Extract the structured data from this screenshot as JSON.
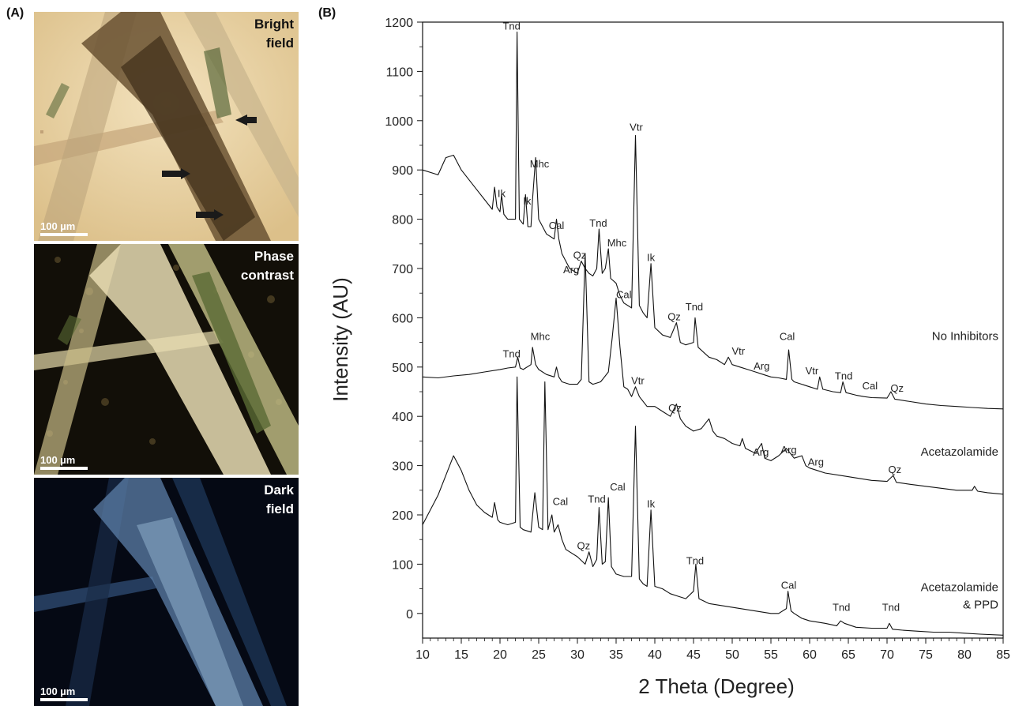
{
  "figure": {
    "panel_a_letter": "(A)",
    "panel_b_letter": "(B)"
  },
  "panel_a": [
    {
      "label_line1": "Bright",
      "label_line2": "field",
      "scale": "100 µm"
    },
    {
      "label_line1": "Phase",
      "label_line2": "contrast",
      "scale": "100 µm"
    },
    {
      "label_line1": "Dark",
      "label_line2": "field",
      "scale": "100 µm"
    }
  ],
  "chart_data": {
    "type": "line",
    "xlabel": "2 Theta (Degree)",
    "ylabel": "Intensity (AU)",
    "xlim": [
      10,
      85
    ],
    "ylim": [
      -50,
      1200
    ],
    "xticks": [
      10,
      15,
      20,
      25,
      30,
      35,
      40,
      45,
      50,
      55,
      60,
      65,
      70,
      75,
      80,
      85
    ],
    "yticks": [
      0,
      100,
      200,
      300,
      400,
      500,
      600,
      700,
      800,
      900,
      1000,
      1100,
      1200
    ],
    "grid": false,
    "series": [
      {
        "name": "No Inhibitors",
        "color": "#111111",
        "points": [
          [
            10,
            900
          ],
          [
            12,
            890
          ],
          [
            13,
            925
          ],
          [
            14,
            930
          ],
          [
            15,
            900
          ],
          [
            16,
            880
          ],
          [
            17,
            860
          ],
          [
            18,
            840
          ],
          [
            19,
            820
          ],
          [
            19.3,
            865
          ],
          [
            19.6,
            825
          ],
          [
            20,
            815
          ],
          [
            20.2,
            850
          ],
          [
            20.5,
            810
          ],
          [
            21,
            800
          ],
          [
            22,
            800
          ],
          [
            22.2,
            1180
          ],
          [
            22.5,
            800
          ],
          [
            23,
            790
          ],
          [
            23.3,
            850
          ],
          [
            23.6,
            785
          ],
          [
            24,
            785
          ],
          [
            24.2,
            840
          ],
          [
            24.6,
            925
          ],
          [
            25,
            800
          ],
          [
            26,
            770
          ],
          [
            27,
            760
          ],
          [
            27.3,
            800
          ],
          [
            27.6,
            760
          ],
          [
            28,
            730
          ],
          [
            29,
            700
          ],
          [
            30,
            690
          ],
          [
            30.5,
            715
          ],
          [
            31,
            700
          ],
          [
            31.5,
            690
          ],
          [
            32,
            685
          ],
          [
            32.5,
            700
          ],
          [
            32.8,
            780
          ],
          [
            33.2,
            690
          ],
          [
            33.6,
            700
          ],
          [
            34,
            740
          ],
          [
            34.3,
            680
          ],
          [
            35,
            670
          ],
          [
            35.5,
            645
          ],
          [
            36,
            630
          ],
          [
            37,
            620
          ],
          [
            37.5,
            970
          ],
          [
            38,
            625
          ],
          [
            38.5,
            610
          ],
          [
            39,
            600
          ],
          [
            39.5,
            710
          ],
          [
            40,
            580
          ],
          [
            41,
            565
          ],
          [
            42,
            560
          ],
          [
            42.8,
            590
          ],
          [
            43.3,
            550
          ],
          [
            44,
            545
          ],
          [
            45,
            550
          ],
          [
            45.2,
            600
          ],
          [
            45.6,
            540
          ],
          [
            47,
            520
          ],
          [
            48,
            515
          ],
          [
            49,
            505
          ],
          [
            49.5,
            520
          ],
          [
            50,
            505
          ],
          [
            51,
            500
          ],
          [
            52,
            495
          ],
          [
            53,
            490
          ],
          [
            54,
            485
          ],
          [
            55,
            480
          ],
          [
            56,
            478
          ],
          [
            57,
            475
          ],
          [
            57.3,
            535
          ],
          [
            57.7,
            475
          ],
          [
            58,
            470
          ],
          [
            59,
            465
          ],
          [
            60,
            460
          ],
          [
            61,
            455
          ],
          [
            61.3,
            480
          ],
          [
            61.7,
            455
          ],
          [
            63,
            450
          ],
          [
            64,
            448
          ],
          [
            64.3,
            470
          ],
          [
            64.7,
            448
          ],
          [
            66,
            443
          ],
          [
            67,
            440
          ],
          [
            68,
            438
          ],
          [
            70,
            437
          ],
          [
            70.5,
            450
          ],
          [
            71,
            435
          ],
          [
            73,
            430
          ],
          [
            75,
            425
          ],
          [
            77,
            422
          ],
          [
            79,
            420
          ],
          [
            81,
            418
          ],
          [
            83,
            416
          ],
          [
            85,
            415
          ]
        ]
      },
      {
        "name": "Acetazolamide",
        "color": "#111111",
        "points": [
          [
            10,
            480
          ],
          [
            12,
            478
          ],
          [
            14,
            482
          ],
          [
            16,
            485
          ],
          [
            18,
            490
          ],
          [
            20,
            495
          ],
          [
            21,
            498
          ],
          [
            22,
            500
          ],
          [
            22.3,
            520
          ],
          [
            22.6,
            498
          ],
          [
            23,
            495
          ],
          [
            24,
            505
          ],
          [
            24.2,
            540
          ],
          [
            24.6,
            505
          ],
          [
            25,
            495
          ],
          [
            26,
            485
          ],
          [
            27,
            480
          ],
          [
            27.3,
            500
          ],
          [
            27.6,
            480
          ],
          [
            28,
            470
          ],
          [
            29,
            465
          ],
          [
            30,
            465
          ],
          [
            30.5,
            475
          ],
          [
            31,
            730
          ],
          [
            31.5,
            470
          ],
          [
            32,
            465
          ],
          [
            33,
            470
          ],
          [
            34,
            490
          ],
          [
            34.5,
            560
          ],
          [
            35,
            640
          ],
          [
            35.5,
            540
          ],
          [
            36,
            460
          ],
          [
            36.5,
            455
          ],
          [
            37,
            440
          ],
          [
            37.5,
            460
          ],
          [
            38,
            440
          ],
          [
            39,
            420
          ],
          [
            40,
            420
          ],
          [
            41,
            410
          ],
          [
            42,
            400
          ],
          [
            42.8,
            425
          ],
          [
            43.3,
            395
          ],
          [
            44,
            380
          ],
          [
            45,
            370
          ],
          [
            46,
            375
          ],
          [
            47,
            395
          ],
          [
            47.5,
            370
          ],
          [
            48,
            360
          ],
          [
            49,
            355
          ],
          [
            50,
            345
          ],
          [
            51,
            340
          ],
          [
            51.3,
            355
          ],
          [
            51.7,
            335
          ],
          [
            53,
            325
          ],
          [
            53.8,
            345
          ],
          [
            54.2,
            315
          ],
          [
            55,
            310
          ],
          [
            56,
            320
          ],
          [
            57,
            335
          ],
          [
            58,
            315
          ],
          [
            59,
            320
          ],
          [
            59.5,
            300
          ],
          [
            60,
            295
          ],
          [
            61,
            290
          ],
          [
            62,
            285
          ],
          [
            64,
            280
          ],
          [
            66,
            275
          ],
          [
            68,
            270
          ],
          [
            70,
            268
          ],
          [
            70.8,
            280
          ],
          [
            71.2,
            266
          ],
          [
            73,
            262
          ],
          [
            75,
            258
          ],
          [
            77,
            254
          ],
          [
            79,
            250
          ],
          [
            81,
            250
          ],
          [
            81.3,
            258
          ],
          [
            81.7,
            248
          ],
          [
            83,
            245
          ],
          [
            85,
            242
          ]
        ]
      },
      {
        "name": "Acetazolamide & PPD",
        "color": "#111111",
        "points": [
          [
            10,
            180
          ],
          [
            11,
            210
          ],
          [
            12,
            240
          ],
          [
            13,
            280
          ],
          [
            14,
            320
          ],
          [
            15,
            290
          ],
          [
            16,
            250
          ],
          [
            17,
            220
          ],
          [
            18,
            205
          ],
          [
            19,
            195
          ],
          [
            19.3,
            225
          ],
          [
            19.7,
            190
          ],
          [
            20,
            185
          ],
          [
            21,
            180
          ],
          [
            22,
            185
          ],
          [
            22.2,
            480
          ],
          [
            22.6,
            175
          ],
          [
            23,
            170
          ],
          [
            24,
            165
          ],
          [
            24.5,
            245
          ],
          [
            25,
            175
          ],
          [
            25.5,
            170
          ],
          [
            25.8,
            470
          ],
          [
            26.2,
            170
          ],
          [
            26.7,
            200
          ],
          [
            27,
            165
          ],
          [
            27.5,
            180
          ],
          [
            28,
            150
          ],
          [
            28.5,
            130
          ],
          [
            29,
            125
          ],
          [
            30,
            115
          ],
          [
            31,
            100
          ],
          [
            31.5,
            125
          ],
          [
            32,
            95
          ],
          [
            32.5,
            110
          ],
          [
            32.8,
            215
          ],
          [
            33.2,
            100
          ],
          [
            33.6,
            105
          ],
          [
            34,
            235
          ],
          [
            34.4,
            95
          ],
          [
            35,
            80
          ],
          [
            36,
            75
          ],
          [
            37,
            75
          ],
          [
            37.5,
            380
          ],
          [
            38,
            70
          ],
          [
            38.5,
            60
          ],
          [
            39,
            55
          ],
          [
            39.5,
            210
          ],
          [
            40,
            55
          ],
          [
            41,
            50
          ],
          [
            42,
            40
          ],
          [
            43,
            35
          ],
          [
            44,
            30
          ],
          [
            45,
            45
          ],
          [
            45.3,
            100
          ],
          [
            45.7,
            30
          ],
          [
            47,
            20
          ],
          [
            49,
            15
          ],
          [
            51,
            10
          ],
          [
            53,
            5
          ],
          [
            55,
            0
          ],
          [
            56,
            0
          ],
          [
            57,
            10
          ],
          [
            57.2,
            45
          ],
          [
            57.6,
            5
          ],
          [
            58,
            0
          ],
          [
            59,
            -10
          ],
          [
            60,
            -15
          ],
          [
            62,
            -20
          ],
          [
            63.5,
            -25
          ],
          [
            64,
            -15
          ],
          [
            64.5,
            -20
          ],
          [
            66,
            -28
          ],
          [
            68,
            -30
          ],
          [
            70,
            -30
          ],
          [
            70.3,
            -20
          ],
          [
            70.7,
            -32
          ],
          [
            72,
            -34
          ],
          [
            74,
            -36
          ],
          [
            76,
            -38
          ],
          [
            78,
            -38
          ],
          [
            80,
            -40
          ],
          [
            82,
            -42
          ],
          [
            85,
            -44
          ]
        ]
      }
    ],
    "series_labels": [
      {
        "text": "No Inhibitors",
        "x": 85,
        "y": 555
      },
      {
        "text": "Acetazolamide",
        "x": 85,
        "y": 320
      },
      {
        "text": "Acetazolamide",
        "x": 85,
        "y": 45
      },
      {
        "text": "& PPD",
        "x": 85,
        "y": 10
      }
    ],
    "annotations": [
      {
        "text": "Tnd",
        "x": 21.5,
        "y": 1185
      },
      {
        "text": "Ik",
        "x": 20.2,
        "y": 845
      },
      {
        "text": "Mhc",
        "x": 25.1,
        "y": 905
      },
      {
        "text": "Ik",
        "x": 23.5,
        "y": 830
      },
      {
        "text": "Cal",
        "x": 27.3,
        "y": 780
      },
      {
        "text": "Tnd",
        "x": 32.7,
        "y": 785
      },
      {
        "text": "Qz",
        "x": 30.3,
        "y": 720
      },
      {
        "text": "Mhc",
        "x": 35.1,
        "y": 745
      },
      {
        "text": "Arg",
        "x": 29.2,
        "y": 690
      },
      {
        "text": "Cal",
        "x": 36,
        "y": 640
      },
      {
        "text": "Vtr",
        "x": 37.6,
        "y": 980
      },
      {
        "text": "Ik",
        "x": 39.5,
        "y": 715
      },
      {
        "text": "Qz",
        "x": 42.5,
        "y": 595
      },
      {
        "text": "Tnd",
        "x": 45.1,
        "y": 615
      },
      {
        "text": "Vtr",
        "x": 50.8,
        "y": 525
      },
      {
        "text": "Arg",
        "x": 53.8,
        "y": 495
      },
      {
        "text": "Cal",
        "x": 57.1,
        "y": 555
      },
      {
        "text": "Vtr",
        "x": 60.3,
        "y": 485
      },
      {
        "text": "Tnd",
        "x": 64.4,
        "y": 475
      },
      {
        "text": "Cal",
        "x": 67.8,
        "y": 455
      },
      {
        "text": "Qz",
        "x": 71.3,
        "y": 450
      },
      {
        "text": "Tnd",
        "x": 21.5,
        "y": 520
      },
      {
        "text": "Mhc",
        "x": 25.2,
        "y": 555
      },
      {
        "text": "Vtr",
        "x": 37.8,
        "y": 465
      },
      {
        "text": "Qz",
        "x": 42.6,
        "y": 410
      },
      {
        "text": "Arg",
        "x": 53.7,
        "y": 320
      },
      {
        "text": "Arg",
        "x": 57.3,
        "y": 325
      },
      {
        "text": "Arg",
        "x": 60.8,
        "y": 300
      },
      {
        "text": "Qz",
        "x": 71,
        "y": 285
      },
      {
        "text": "Cal",
        "x": 27.8,
        "y": 220
      },
      {
        "text": "Tnd",
        "x": 32.5,
        "y": 225
      },
      {
        "text": "Cal",
        "x": 35.2,
        "y": 250
      },
      {
        "text": "Qz",
        "x": 30.8,
        "y": 130
      },
      {
        "text": "Ik",
        "x": 39.5,
        "y": 215
      },
      {
        "text": "Tnd",
        "x": 45.2,
        "y": 100
      },
      {
        "text": "Cal",
        "x": 57.3,
        "y": 50
      },
      {
        "text": "Tnd",
        "x": 64.1,
        "y": 5
      },
      {
        "text": "Tnd",
        "x": 70.5,
        "y": 5
      }
    ]
  }
}
